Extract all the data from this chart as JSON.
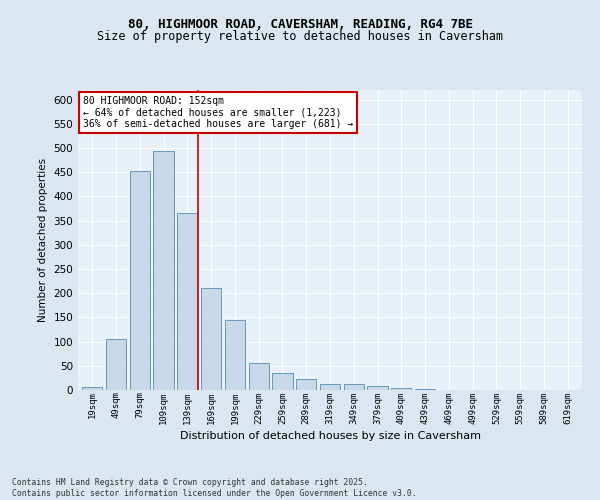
{
  "title1": "80, HIGHMOOR ROAD, CAVERSHAM, READING, RG4 7BE",
  "title2": "Size of property relative to detached houses in Caversham",
  "xlabel": "Distribution of detached houses by size in Caversham",
  "ylabel": "Number of detached properties",
  "bar_color": "#c8d8e8",
  "bar_edge_color": "#6699bb",
  "categories": [
    "19sqm",
    "49sqm",
    "79sqm",
    "109sqm",
    "139sqm",
    "169sqm",
    "199sqm",
    "229sqm",
    "259sqm",
    "289sqm",
    "319sqm",
    "349sqm",
    "379sqm",
    "409sqm",
    "439sqm",
    "469sqm",
    "499sqm",
    "529sqm",
    "559sqm",
    "589sqm",
    "619sqm"
  ],
  "values": [
    7,
    105,
    453,
    493,
    365,
    210,
    145,
    56,
    35,
    23,
    13,
    12,
    8,
    5,
    2,
    1,
    1,
    1,
    0,
    0,
    1
  ],
  "ylim": [
    0,
    620
  ],
  "yticks": [
    0,
    50,
    100,
    150,
    200,
    250,
    300,
    350,
    400,
    450,
    500,
    550,
    600
  ],
  "vline_color": "#cc0000",
  "annotation_text": "80 HIGHMOOR ROAD: 152sqm\n← 64% of detached houses are smaller (1,223)\n36% of semi-detached houses are larger (681) →",
  "annotation_box_color": "#ffffff",
  "annotation_box_edge": "#cc0000",
  "bg_color": "#dce6f0",
  "plot_bg_color": "#e8f0f8",
  "footnote": "Contains HM Land Registry data © Crown copyright and database right 2025.\nContains public sector information licensed under the Open Government Licence v3.0.",
  "title_fontsize": 9,
  "subtitle_fontsize": 8.5,
  "grid_color": "#ffffff"
}
